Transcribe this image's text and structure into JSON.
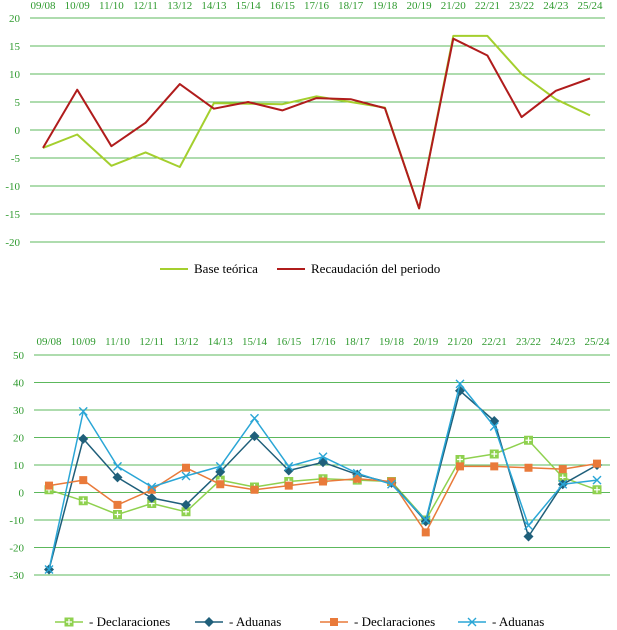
{
  "colors": {
    "grid": "#5cb85c",
    "label": "#2e9a2e",
    "base": "#a4cf2e",
    "recaudacion": "#b01c1c",
    "declaraciones_a": "#8fd14f",
    "aduanas_a": "#1f5f7a",
    "declaraciones_b": "#e97a3a",
    "aduanas_b": "#2aa6d6"
  },
  "chart_data": [
    {
      "type": "line",
      "categories": [
        "09/08",
        "10/09",
        "11/10",
        "12/11",
        "13/12",
        "14/13",
        "15/14",
        "16/15",
        "17/16",
        "18/17",
        "19/18",
        "20/19",
        "21/20",
        "22/21",
        "23/22",
        "24/23",
        "25/24"
      ],
      "ylim": [
        -20,
        20
      ],
      "yticks": [
        -20,
        -15,
        -10,
        -5,
        0,
        5,
        10,
        15,
        20
      ],
      "grid": true,
      "legend_position": "bottom",
      "series": [
        {
          "name": "Base teórica",
          "color_key": "base",
          "marker": "none",
          "values": [
            -3.2,
            -0.8,
            -6.4,
            -4.0,
            -6.6,
            4.8,
            4.7,
            4.6,
            6.0,
            5.0,
            4.0,
            -14.0,
            16.8,
            16.8,
            10.0,
            5.5,
            2.6
          ]
        },
        {
          "name": "Recaudación del periodo",
          "color_key": "recaudacion",
          "marker": "none",
          "values": [
            -3.2,
            7.2,
            -2.9,
            1.3,
            8.2,
            3.8,
            5.0,
            3.5,
            5.7,
            5.5,
            3.9,
            -14.0,
            16.3,
            13.3,
            2.3,
            7.0,
            9.2
          ]
        }
      ]
    },
    {
      "type": "line",
      "categories": [
        "09/08",
        "10/09",
        "11/10",
        "12/11",
        "13/12",
        "14/13",
        "15/14",
        "16/15",
        "17/16",
        "18/17",
        "19/18",
        "20/19",
        "21/20",
        "22/21",
        "23/22",
        "24/23",
        "25/24"
      ],
      "ylim": [
        -30,
        50
      ],
      "yticks": [
        -30,
        -20,
        -10,
        0,
        10,
        20,
        30,
        40,
        50
      ],
      "grid": true,
      "legend_position": "bottom",
      "series": [
        {
          "name": "- Declaraciones",
          "color_key": "declaraciones_a",
          "marker": "square-cross",
          "values": [
            1,
            -3,
            -8,
            -4,
            -7,
            4.5,
            2,
            4,
            5,
            4.5,
            4,
            -10,
            12,
            14,
            19,
            5.5,
            1
          ]
        },
        {
          "name": "- Aduanas",
          "color_key": "aduanas_a",
          "marker": "diamond",
          "values": [
            -28,
            19.5,
            5.5,
            -2,
            -4.5,
            7.5,
            20.5,
            8,
            11,
            6.5,
            3.5,
            -10.5,
            37,
            26,
            -16,
            3,
            10
          ]
        },
        {
          "name": "- Declaraciones",
          "color_key": "declaraciones_b",
          "marker": "square",
          "values": [
            2.5,
            4.5,
            -4.5,
            1,
            9,
            3,
            1,
            2.5,
            4,
            5,
            4,
            -14.5,
            9.5,
            9.5,
            9,
            8.5,
            10.5
          ]
        },
        {
          "name": "- Aduanas",
          "color_key": "aduanas_b",
          "marker": "x",
          "values": [
            -28,
            29.5,
            9.5,
            2,
            6,
            9.5,
            27,
            9.5,
            13,
            7,
            3,
            -10,
            39.5,
            24,
            -12,
            3,
            4.5
          ]
        }
      ]
    }
  ]
}
